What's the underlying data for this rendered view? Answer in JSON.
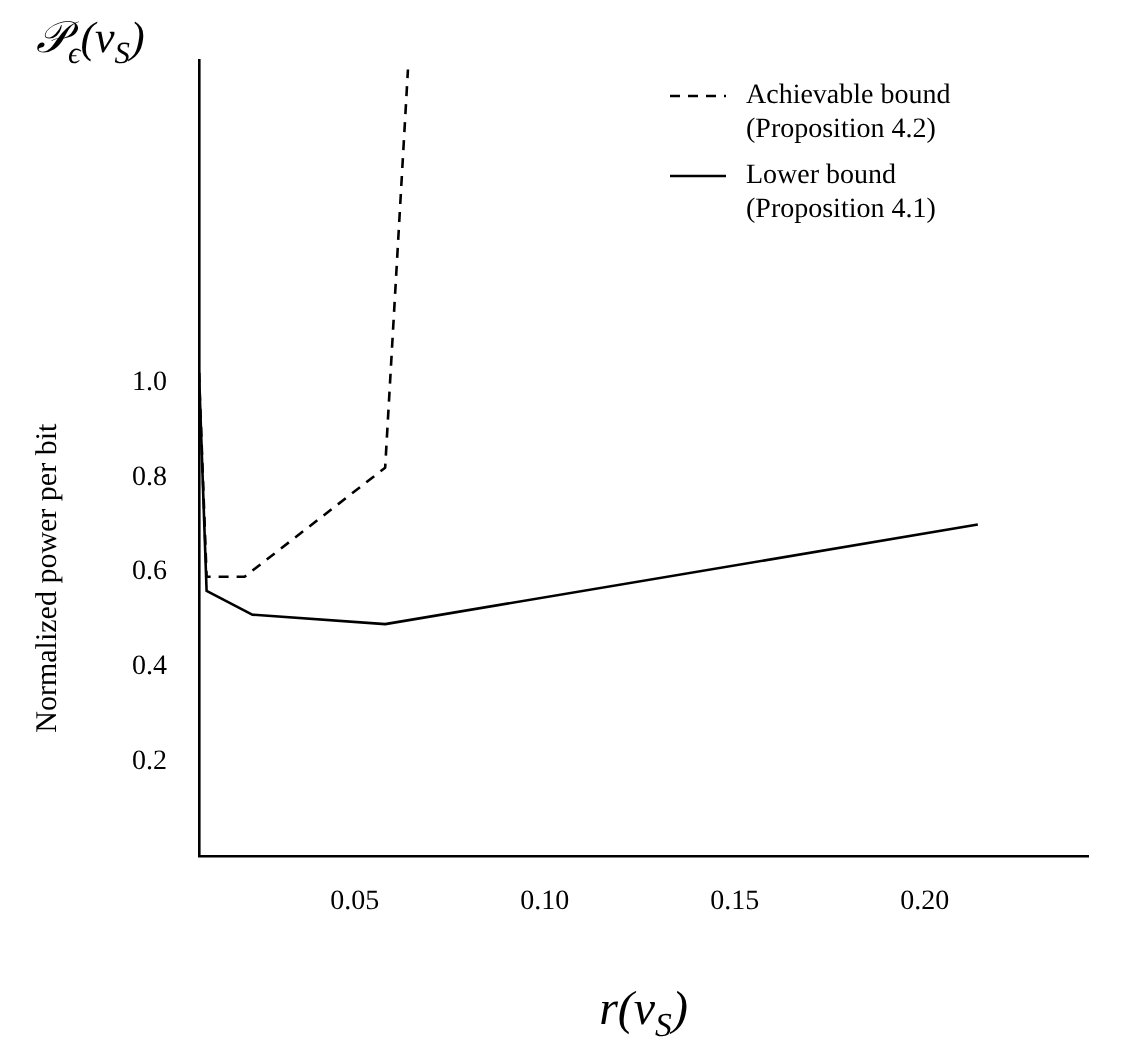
{
  "chart_data": {
    "type": "line",
    "xlabel": "r(v$_{S}$)",
    "ylabel": "Normalized power per bit",
    "annotations": [
      "𝒫$_{ϵ}$(v$_{S}$)"
    ],
    "xlim": [
      0.009,
      0.243
    ],
    "ylim": [
      0,
      1.68
    ],
    "xticks": [
      0.05,
      {
        "value": 0.1,
        "label": "0.10"
      },
      0.15,
      {
        "value": 0.2,
        "label": "0.20"
      }
    ],
    "yticks": [
      0.2,
      0.4,
      0.6,
      0.8,
      {
        "value": 1,
        "label": "1.0"
      }
    ],
    "grid": false,
    "legend": "top right",
    "marker": "none",
    "series": [
      {
        "name": "Achievable bound (Proposition 4.2)",
        "color": "#000000",
        "line_style": "dashed",
        "x": [
          0.009,
          0.011,
          0.021,
          0.058,
          0.064
        ],
        "values": [
          1.02,
          0.59,
          0.59,
          0.82,
          1.66
        ]
      },
      {
        "name": "Lower bound (Proposition 4.1)",
        "color": "#000000",
        "line_style": "solid",
        "x": [
          0.009,
          0.011,
          0.023,
          0.058,
          0.214
        ],
        "values": [
          1.02,
          0.56,
          0.51,
          0.49,
          0.7
        ]
      }
    ]
  }
}
